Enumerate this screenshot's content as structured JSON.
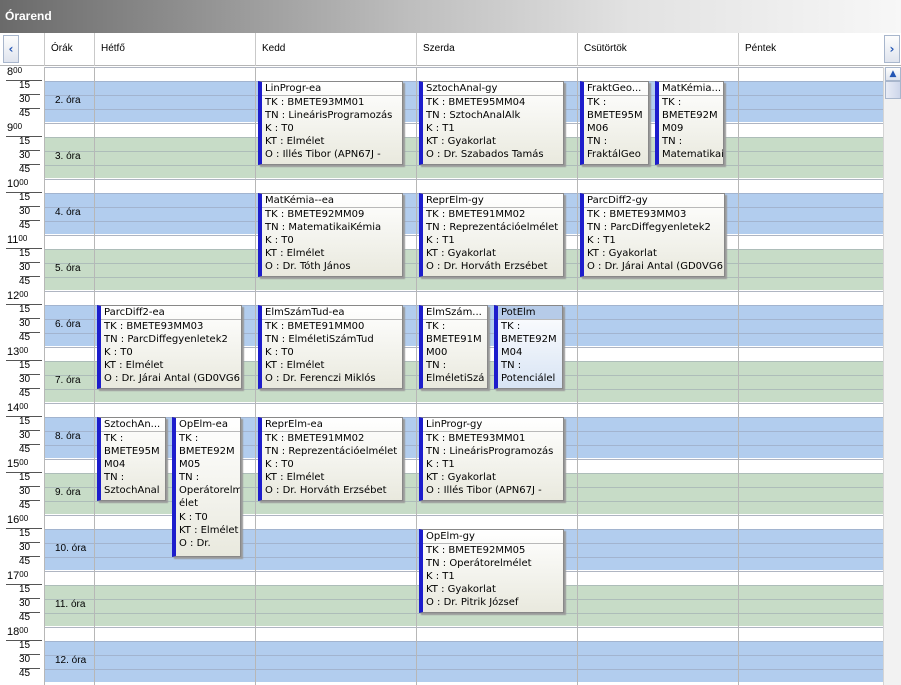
{
  "window": {
    "title": "Órarend"
  },
  "header": {
    "hours_col": "Órák",
    "days": [
      "Hétfő",
      "Kedd",
      "Szerda",
      "Csütörtök",
      "Péntek"
    ],
    "prev_icon": "‹",
    "next_icon": "›"
  },
  "colors": {
    "blue": "#b2cdee",
    "green": "#c7dcc7",
    "accent": "#1d1dcc"
  },
  "hours": [
    "8",
    "9",
    "10",
    "11",
    "12",
    "13",
    "14",
    "15",
    "16",
    "17",
    "18"
  ],
  "hour_suffix": "00",
  "quarters": [
    "15",
    "30",
    "45"
  ],
  "periods": [
    "2. óra",
    "3. óra",
    "4. óra",
    "5. óra",
    "6. óra",
    "7. óra",
    "8. óra",
    "9. óra",
    "10. óra",
    "11. óra",
    "12. óra"
  ],
  "events": [
    {
      "day": 1,
      "sub": 0,
      "subs": 1,
      "start": "8:15",
      "end": "9:45",
      "title": "LinProgr-ea",
      "lines": [
        "TK : BMETE93MM01",
        "TN : LineárisProgramozás",
        "K : T0",
        "KT : Elmélet",
        "O : Illés Tibor (APN67J -"
      ]
    },
    {
      "day": 2,
      "sub": 0,
      "subs": 1,
      "start": "8:15",
      "end": "9:45",
      "title": "SztochAnal-gy",
      "lines": [
        "TK : BMETE95MM04",
        "TN : SztochAnalAlk",
        "K : T1",
        "KT : Gyakorlat",
        "O : Dr. Szabados Tamás"
      ]
    },
    {
      "day": 3,
      "sub": 0,
      "subs": 2,
      "start": "8:15",
      "end": "9:45",
      "title": "FraktGeo...",
      "lines": [
        "TK :",
        "BMETE95M",
        "M06",
        "TN :",
        "FraktálGeo"
      ]
    },
    {
      "day": 3,
      "sub": 1,
      "subs": 2,
      "start": "8:15",
      "end": "9:45",
      "title": "MatKémia...",
      "lines": [
        "TK :",
        "BMETE92M",
        "M09",
        "TN :",
        "Matematikai"
      ]
    },
    {
      "day": 1,
      "sub": 0,
      "subs": 1,
      "start": "10:15",
      "end": "11:45",
      "title": "MatKémia--ea",
      "lines": [
        "TK : BMETE92MM09",
        "TN : MatematikaiKémia",
        "K : T0",
        "KT : Elmélet",
        "O : Dr. Tóth János"
      ]
    },
    {
      "day": 2,
      "sub": 0,
      "subs": 1,
      "start": "10:15",
      "end": "11:45",
      "title": "ReprElm-gy",
      "lines": [
        "TK : BMETE91MM02",
        "TN : Reprezentációelmélet",
        "K : T1",
        "KT : Gyakorlat",
        "O : Dr. Horváth Erzsébet"
      ]
    },
    {
      "day": 3,
      "sub": 0,
      "subs": 1,
      "start": "10:15",
      "end": "11:45",
      "title": "ParcDiff2-gy",
      "lines": [
        "TK : BMETE93MM03",
        "TN : ParcDiffegyenletek2",
        "K : T1",
        "KT : Gyakorlat",
        "O : Dr. Járai Antal (GD0VG6"
      ]
    },
    {
      "day": 0,
      "sub": 0,
      "subs": 1,
      "start": "12:15",
      "end": "13:45",
      "title": "ParcDiff2-ea",
      "lines": [
        "TK : BMETE93MM03",
        "TN : ParcDiffegyenletek2",
        "K : T0",
        "KT : Elmélet",
        "O : Dr. Járai Antal (GD0VG6"
      ]
    },
    {
      "day": 1,
      "sub": 0,
      "subs": 1,
      "start": "12:15",
      "end": "13:45",
      "title": "ElmSzámTud-ea",
      "lines": [
        "TK : BMETE91MM00",
        "TN : ElméletiSzámTud",
        "K : T0",
        "KT : Elmélet",
        "O : Dr. Ferenczi Miklós"
      ]
    },
    {
      "day": 2,
      "sub": 0,
      "subs": 2,
      "start": "12:15",
      "end": "13:45",
      "title": "ElmSzám...",
      "lines": [
        "TK :",
        "BMETE91M",
        "M00",
        "TN :",
        "ElméletiSzá"
      ]
    },
    {
      "day": 2,
      "sub": 1,
      "subs": 2,
      "start": "12:15",
      "end": "13:45",
      "title": "PotElm",
      "selected": true,
      "lines": [
        "TK :",
        "BMETE92M",
        "M04",
        "TN :",
        "Potenciálel"
      ]
    },
    {
      "day": 0,
      "sub": 0,
      "subs": 2,
      "start": "14:15",
      "end": "15:45",
      "title": "SztochAn...",
      "lines": [
        "TK :",
        "BMETE95M",
        "M04",
        "TN :",
        "SztochAnal"
      ]
    },
    {
      "day": 0,
      "sub": 1,
      "subs": 2,
      "start": "14:15",
      "end": "16:45",
      "title": "OpElm-ea",
      "lines": [
        "TK :",
        "BMETE92M",
        "M05",
        "TN :",
        "Operátorelm",
        "élet",
        "K : T0",
        "KT : Elmélet",
        "O : Dr."
      ]
    },
    {
      "day": 1,
      "sub": 0,
      "subs": 1,
      "start": "14:15",
      "end": "15:45",
      "title": "ReprElm-ea",
      "lines": [
        "TK : BMETE91MM02",
        "TN : Reprezentációelmélet",
        "K : T0",
        "KT : Elmélet",
        "O : Dr. Horváth Erzsébet"
      ]
    },
    {
      "day": 2,
      "sub": 0,
      "subs": 1,
      "start": "14:15",
      "end": "15:45",
      "title": "LinProgr-gy",
      "lines": [
        "TK : BMETE93MM01",
        "TN : LineárisProgramozás",
        "K : T1",
        "KT : Gyakorlat",
        "O : Illés Tibor (APN67J -"
      ]
    },
    {
      "day": 2,
      "sub": 0,
      "subs": 1,
      "start": "16:15",
      "end": "17:45",
      "title": "OpElm-gy",
      "lines": [
        "TK : BMETE92MM05",
        "TN : Operátorelmélet",
        "K : T1",
        "KT : Gyakorlat",
        "O : Dr. Pitrik József"
      ]
    }
  ]
}
